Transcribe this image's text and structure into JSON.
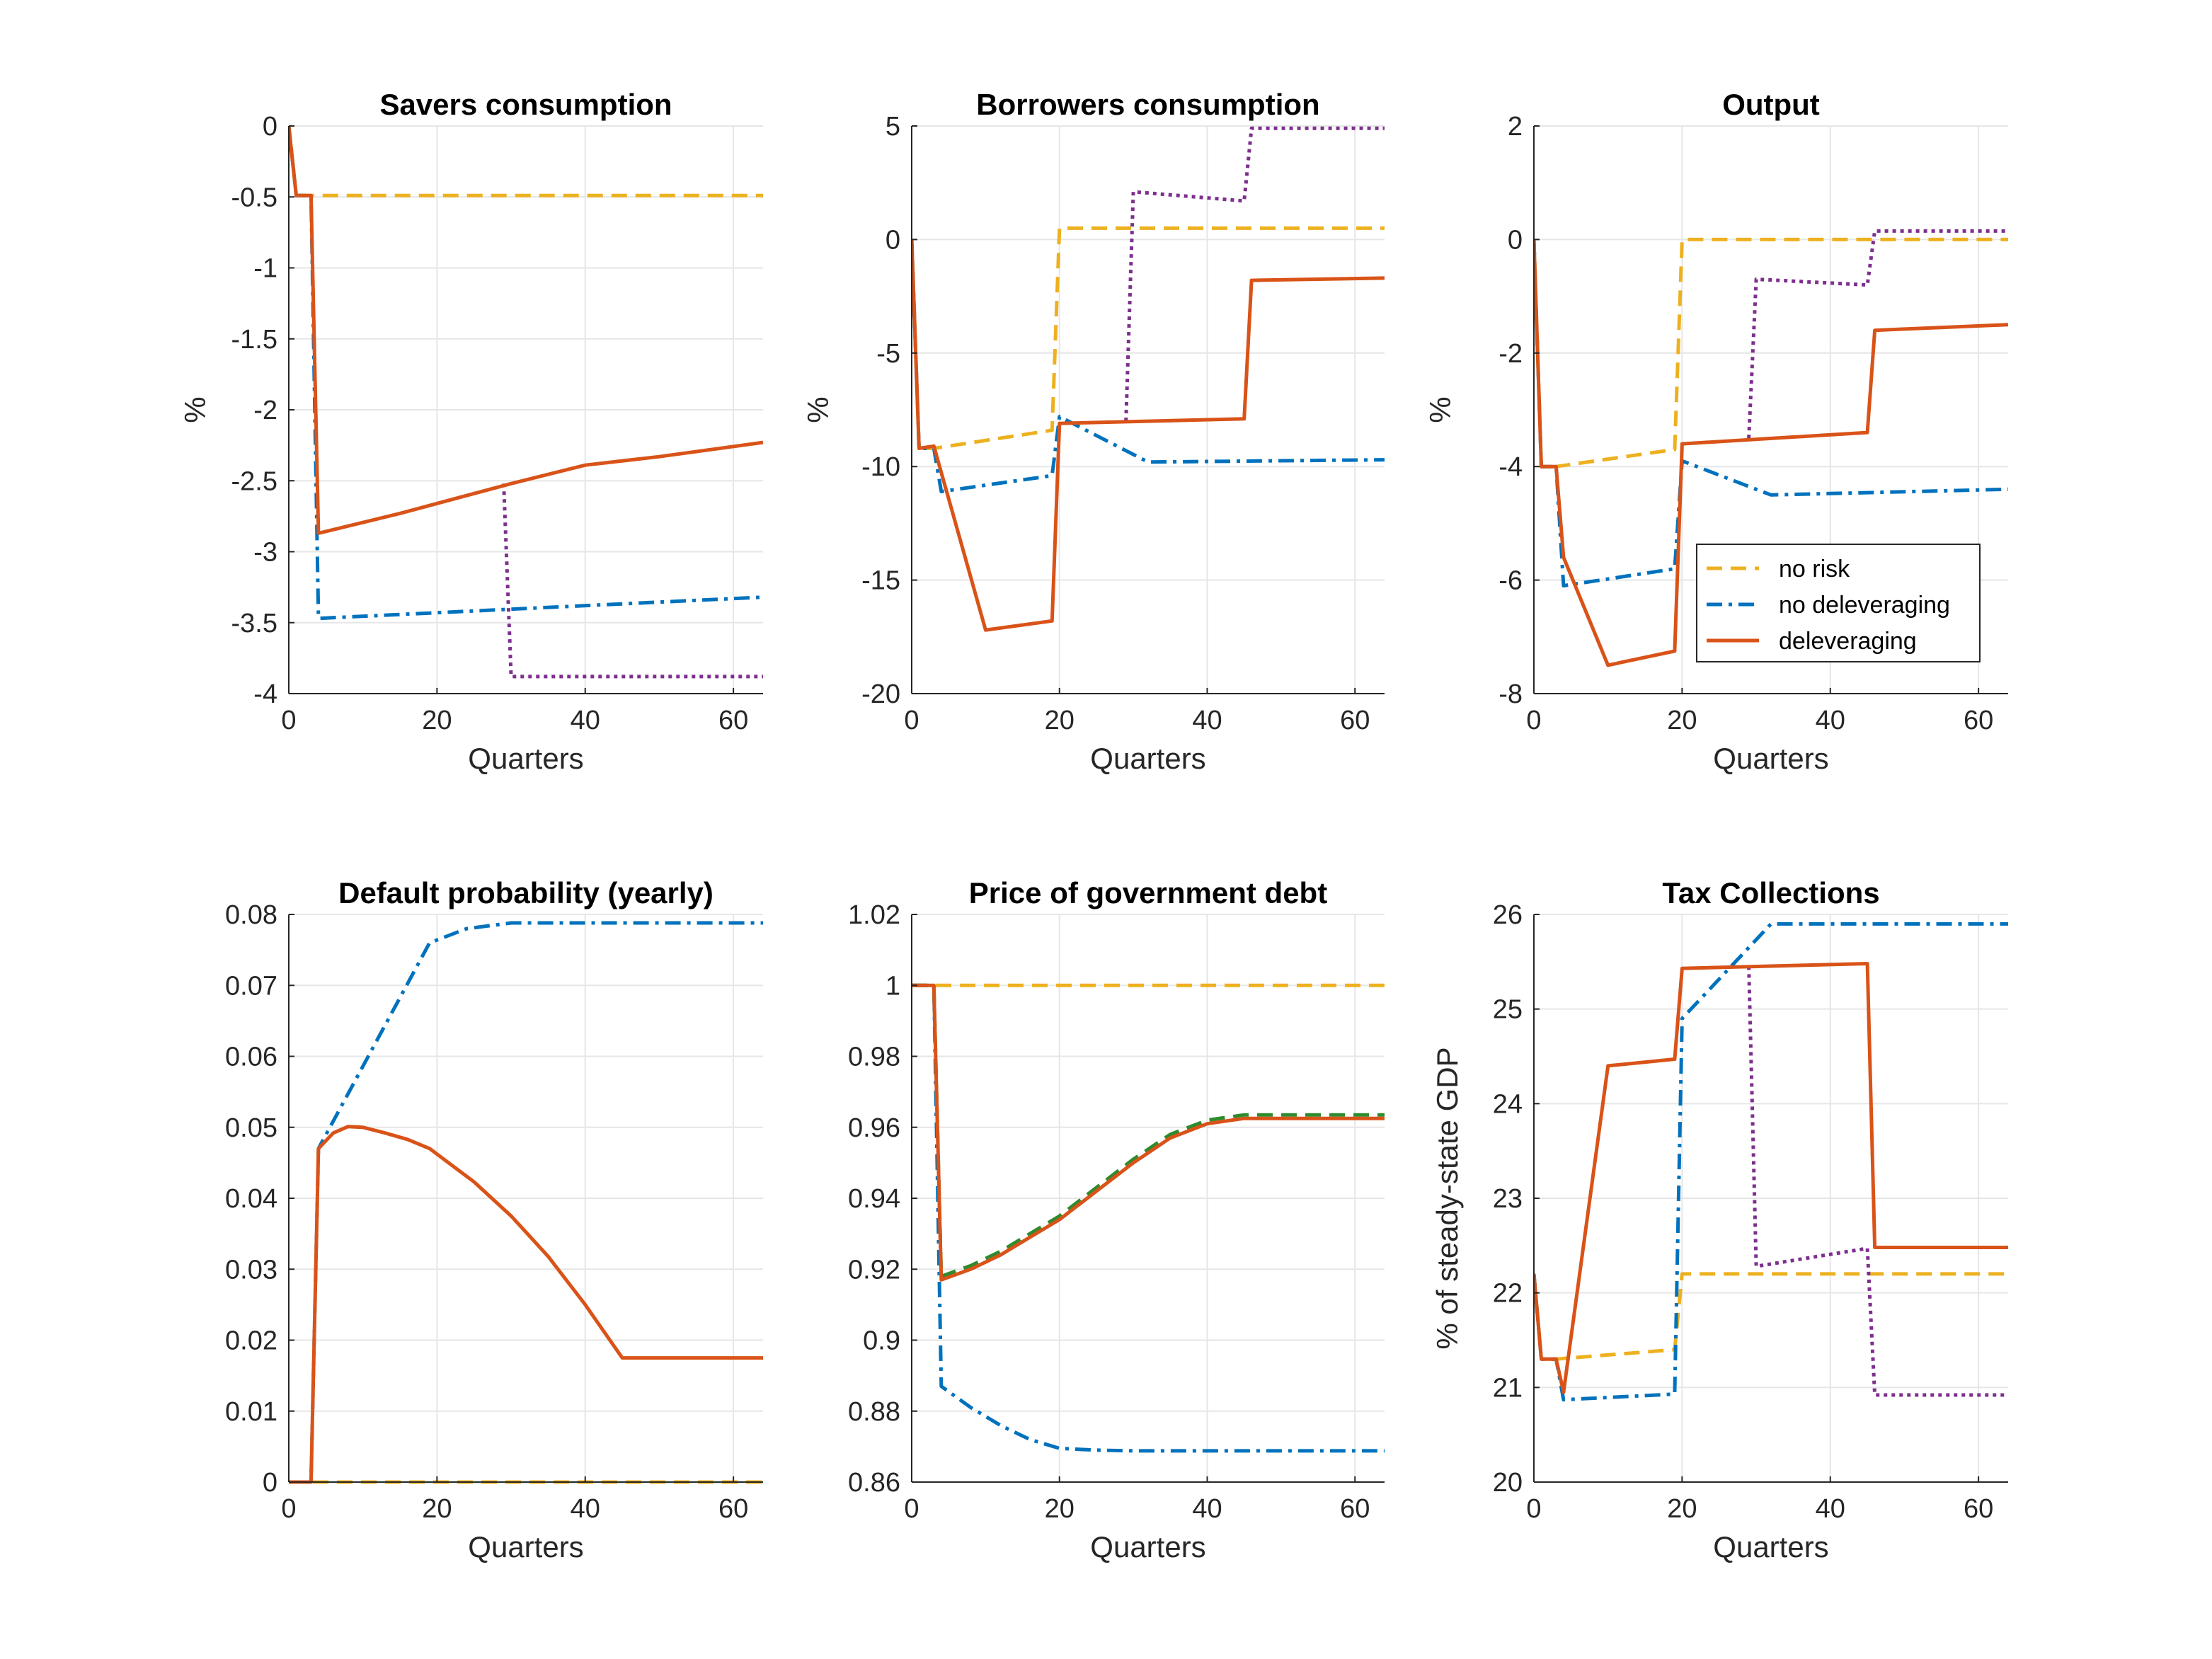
{
  "colors": {
    "no_risk": "#EDB120",
    "no_deleveraging": "#0072BD",
    "deleveraging": "#D95319",
    "purple": "#7E2F8E",
    "green": "#2E8B2E",
    "grid": "#e6e6e6",
    "axis": "#262626"
  },
  "legend": {
    "panel_index": 2,
    "entries": [
      {
        "label": "no risk",
        "series": "no_risk"
      },
      {
        "label": "no deleveraging",
        "series": "no_deleveraging"
      },
      {
        "label": "deleveraging",
        "series": "deleveraging"
      }
    ]
  },
  "chart_data": [
    {
      "type": "line",
      "title": "Savers consumption",
      "xlabel": "Quarters",
      "ylabel": "%",
      "xlim": [
        0,
        64
      ],
      "ylim": [
        -4,
        0
      ],
      "xticks": [
        0,
        20,
        40,
        60
      ],
      "xtick_labels": [
        "0",
        "20",
        "40",
        "60"
      ],
      "yticks": [
        0,
        -0.5,
        -1,
        -1.5,
        -2,
        -2.5,
        -3,
        -3.5,
        -4
      ],
      "ytick_labels": [
        "0",
        "-0.5",
        "-1",
        "-1.5",
        "-2",
        "-2.5",
        "-3",
        "-3.5",
        "-4"
      ],
      "grid": true,
      "series": [
        {
          "key": "no_risk",
          "style": "dashed",
          "x": [
            0,
            1,
            64
          ],
          "y": [
            0,
            -0.49,
            -0.49
          ]
        },
        {
          "key": "no_deleveraging",
          "style": "dashdot",
          "x": [
            0,
            1,
            3,
            4,
            64
          ],
          "y": [
            0,
            -0.49,
            -0.49,
            -3.47,
            -3.32
          ]
        },
        {
          "key": "purple",
          "style": "dotted",
          "x": [
            29,
            30,
            64
          ],
          "y": [
            -2.52,
            -3.88,
            -3.88
          ]
        },
        {
          "key": "deleveraging",
          "style": "solid",
          "x": [
            0,
            1,
            3,
            4,
            15,
            30,
            40,
            50,
            64
          ],
          "y": [
            0,
            -0.49,
            -0.49,
            -2.87,
            -2.73,
            -2.52,
            -2.39,
            -2.33,
            -2.23
          ]
        }
      ]
    },
    {
      "type": "line",
      "title": "Borrowers consumption",
      "xlabel": "Quarters",
      "ylabel": "%",
      "xlim": [
        0,
        64
      ],
      "ylim": [
        -20,
        5
      ],
      "xticks": [
        0,
        20,
        40,
        60
      ],
      "xtick_labels": [
        "0",
        "20",
        "40",
        "60"
      ],
      "yticks": [
        5,
        0,
        -5,
        -10,
        -15,
        -20
      ],
      "ytick_labels": [
        "5",
        "0",
        "-5",
        "-10",
        "-15",
        "-20"
      ],
      "grid": true,
      "series": [
        {
          "key": "no_risk",
          "style": "dashed",
          "x": [
            0,
            1,
            3,
            19,
            20,
            64
          ],
          "y": [
            0,
            -9.2,
            -9.2,
            -8.4,
            0.5,
            0.5
          ]
        },
        {
          "key": "no_deleveraging",
          "style": "dashdot",
          "x": [
            0,
            1,
            3,
            4,
            19,
            20,
            32,
            64
          ],
          "y": [
            0,
            -9.2,
            -9.2,
            -11.1,
            -10.4,
            -7.8,
            -9.8,
            -9.7
          ]
        },
        {
          "key": "purple",
          "style": "dotted",
          "x": [
            29,
            30,
            45,
            46,
            64
          ],
          "y": [
            -8.0,
            2.1,
            1.7,
            4.9,
            4.9
          ]
        },
        {
          "key": "deleveraging",
          "style": "solid",
          "x": [
            0,
            1,
            3,
            10,
            19,
            20,
            45,
            46,
            64
          ],
          "y": [
            0,
            -9.2,
            -9.1,
            -17.2,
            -16.8,
            -8.1,
            -7.9,
            -1.8,
            -1.7
          ]
        }
      ]
    },
    {
      "type": "line",
      "title": "Output",
      "xlabel": "Quarters",
      "ylabel": "%",
      "xlim": [
        0,
        64
      ],
      "ylim": [
        -8,
        2
      ],
      "xticks": [
        0,
        20,
        40,
        60
      ],
      "xtick_labels": [
        "0",
        "20",
        "40",
        "60"
      ],
      "yticks": [
        2,
        0,
        -2,
        -4,
        -6,
        -8
      ],
      "ytick_labels": [
        "2",
        "0",
        "-2",
        "-4",
        "-6",
        "-8"
      ],
      "grid": true,
      "series": [
        {
          "key": "no_risk",
          "style": "dashed",
          "x": [
            0,
            1,
            3,
            19,
            20,
            64
          ],
          "y": [
            0,
            -4.0,
            -4.0,
            -3.7,
            0.0,
            0.0
          ]
        },
        {
          "key": "no_deleveraging",
          "style": "dashdot",
          "x": [
            0,
            1,
            3,
            4,
            19,
            20,
            32,
            64
          ],
          "y": [
            0,
            -4.0,
            -4.0,
            -6.1,
            -5.8,
            -3.9,
            -4.5,
            -4.4
          ]
        },
        {
          "key": "purple",
          "style": "dotted",
          "x": [
            29,
            30,
            45,
            46,
            64
          ],
          "y": [
            -3.5,
            -0.7,
            -0.8,
            0.15,
            0.15
          ]
        },
        {
          "key": "deleveraging",
          "style": "solid",
          "x": [
            0,
            1,
            3,
            4,
            10,
            19,
            20,
            45,
            46,
            64
          ],
          "y": [
            0,
            -4.0,
            -4.0,
            -5.6,
            -7.5,
            -7.25,
            -3.6,
            -3.4,
            -1.6,
            -1.5
          ]
        }
      ]
    },
    {
      "type": "line",
      "title": "Default probability (yearly)",
      "xlabel": "Quarters",
      "ylabel": "",
      "xlim": [
        0,
        64
      ],
      "ylim": [
        0,
        0.08
      ],
      "xticks": [
        0,
        20,
        40,
        60
      ],
      "xtick_labels": [
        "0",
        "20",
        "40",
        "60"
      ],
      "yticks": [
        0.08,
        0.07,
        0.06,
        0.05,
        0.04,
        0.03,
        0.02,
        0.01,
        0
      ],
      "ytick_labels": [
        "0.08",
        "0.07",
        "0.06",
        "0.05",
        "0.04",
        "0.03",
        "0.02",
        "0.01",
        "0"
      ],
      "grid": true,
      "series": [
        {
          "key": "no_risk",
          "style": "dashed",
          "x": [
            0,
            64
          ],
          "y": [
            0,
            0
          ]
        },
        {
          "key": "no_deleveraging",
          "style": "dashdot",
          "x": [
            0,
            3,
            4,
            19,
            24,
            30,
            64
          ],
          "y": [
            0,
            0,
            0.047,
            0.076,
            0.078,
            0.0788,
            0.0788
          ]
        },
        {
          "key": "deleveraging",
          "style": "solid",
          "x": [
            0,
            3,
            4,
            6,
            8,
            10,
            13,
            16,
            19,
            25,
            30,
            35,
            40,
            45,
            64
          ],
          "y": [
            0,
            0,
            0.047,
            0.0492,
            0.0501,
            0.05,
            0.0492,
            0.0483,
            0.047,
            0.0423,
            0.0375,
            0.0318,
            0.025,
            0.0175,
            0.0175
          ]
        }
      ]
    },
    {
      "type": "line",
      "title": "Price of government debt",
      "xlabel": "Quarters",
      "ylabel": "",
      "xlim": [
        0,
        64
      ],
      "ylim": [
        0.86,
        1.02
      ],
      "xticks": [
        0,
        20,
        40,
        60
      ],
      "xtick_labels": [
        "0",
        "20",
        "40",
        "60"
      ],
      "yticks": [
        1.02,
        1,
        0.98,
        0.96,
        0.94,
        0.92,
        0.9,
        0.88,
        0.86
      ],
      "ytick_labels": [
        "1.02",
        "1",
        "0.98",
        "0.96",
        "0.94",
        "0.92",
        "0.9",
        "0.88",
        "0.86"
      ],
      "grid": true,
      "series": [
        {
          "key": "no_risk",
          "style": "dashed",
          "x": [
            0,
            64
          ],
          "y": [
            1.0,
            1.0
          ]
        },
        {
          "key": "no_deleveraging",
          "style": "dashdot",
          "x": [
            0,
            3,
            4,
            8,
            12,
            16,
            20,
            25,
            30,
            64
          ],
          "y": [
            1.0,
            1.0,
            0.887,
            0.881,
            0.876,
            0.872,
            0.8695,
            0.869,
            0.8688,
            0.8688
          ]
        },
        {
          "key": "green",
          "style": "dashed",
          "x": [
            0,
            3,
            4,
            8,
            12,
            16,
            20,
            25,
            30,
            35,
            40,
            45,
            64
          ],
          "y": [
            1.0,
            1.0,
            0.918,
            0.921,
            0.925,
            0.93,
            0.935,
            0.943,
            0.951,
            0.958,
            0.962,
            0.9635,
            0.9635
          ]
        },
        {
          "key": "deleveraging",
          "style": "solid",
          "x": [
            0,
            3,
            4,
            8,
            12,
            16,
            20,
            25,
            30,
            35,
            40,
            45,
            64
          ],
          "y": [
            1.0,
            1.0,
            0.917,
            0.92,
            0.924,
            0.929,
            0.934,
            0.942,
            0.95,
            0.957,
            0.961,
            0.9625,
            0.9625
          ]
        }
      ]
    },
    {
      "type": "line",
      "title": "Tax Collections",
      "xlabel": "Quarters",
      "ylabel": "% of steady-state GDP",
      "xlim": [
        0,
        64
      ],
      "ylim": [
        20,
        26
      ],
      "xticks": [
        0,
        20,
        40,
        60
      ],
      "xtick_labels": [
        "0",
        "20",
        "40",
        "60"
      ],
      "yticks": [
        26,
        25,
        24,
        23,
        22,
        21,
        20
      ],
      "ytick_labels": [
        "26",
        "25",
        "24",
        "23",
        "22",
        "21",
        "20"
      ],
      "grid": true,
      "series": [
        {
          "key": "no_risk",
          "style": "dashed",
          "x": [
            0,
            1,
            3,
            19,
            20,
            64
          ],
          "y": [
            22.2,
            21.3,
            21.3,
            21.4,
            22.2,
            22.2
          ]
        },
        {
          "key": "no_deleveraging",
          "style": "dashdot",
          "x": [
            0,
            1,
            3,
            4,
            19,
            20,
            32,
            64
          ],
          "y": [
            22.2,
            21.3,
            21.3,
            20.87,
            20.93,
            24.9,
            25.9,
            25.9
          ]
        },
        {
          "key": "purple",
          "style": "dotted",
          "x": [
            29,
            30,
            45,
            46,
            64
          ],
          "y": [
            25.45,
            22.28,
            22.47,
            20.92,
            20.92
          ]
        },
        {
          "key": "deleveraging",
          "style": "solid",
          "x": [
            0,
            1,
            3,
            4,
            10,
            19,
            20,
            45,
            46,
            64
          ],
          "y": [
            22.2,
            21.3,
            21.3,
            20.95,
            24.4,
            24.47,
            25.43,
            25.48,
            22.48,
            22.48
          ]
        }
      ]
    }
  ]
}
